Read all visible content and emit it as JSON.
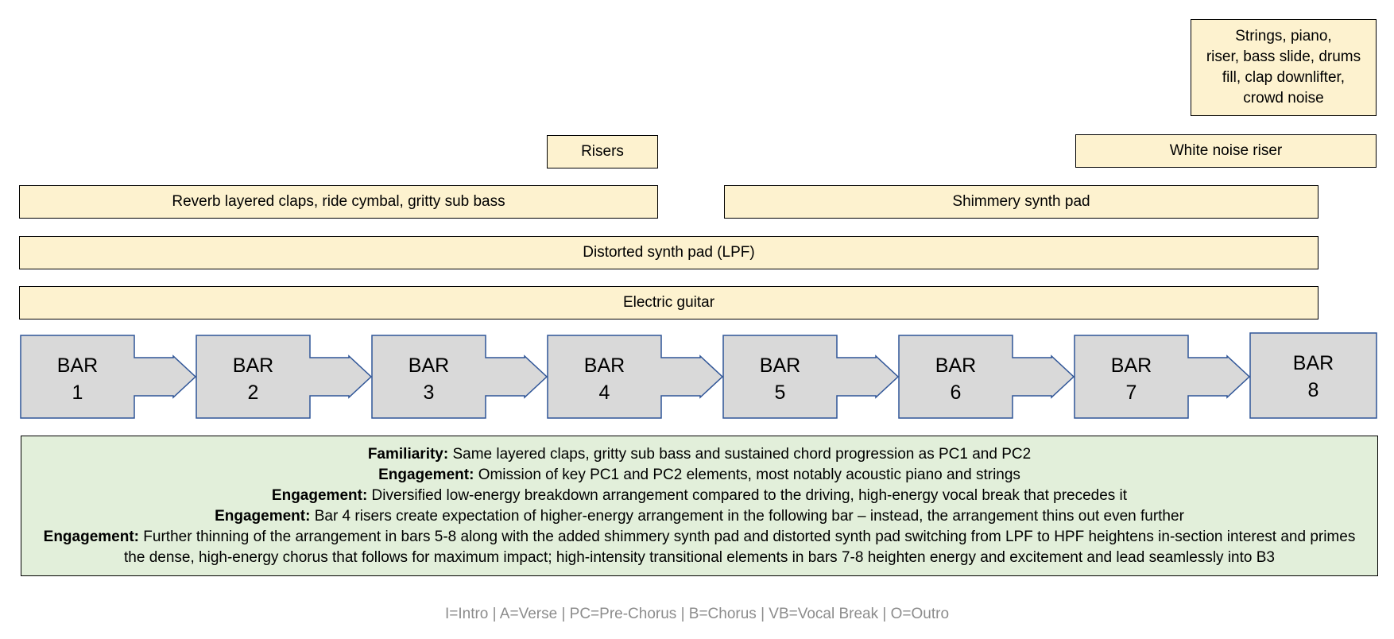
{
  "layers": {
    "transitions": "Strings, piano,\nriser, bass slide, drums\nfill, clap downlifter,\ncrowd noise",
    "risers": "Risers",
    "white_noise": "White noise riser",
    "claps": "Reverb layered claps, ride cymbal, gritty sub bass",
    "shimmer": "Shimmery synth pad",
    "distorted": "Distorted synth pad (LPF)",
    "guitar": "Electric guitar"
  },
  "bars": [
    {
      "word": "BAR",
      "num": "1"
    },
    {
      "word": "BAR",
      "num": "2"
    },
    {
      "word": "BAR",
      "num": "3"
    },
    {
      "word": "BAR",
      "num": "4"
    },
    {
      "word": "BAR",
      "num": "5"
    },
    {
      "word": "BAR",
      "num": "6"
    },
    {
      "word": "BAR",
      "num": "7"
    },
    {
      "word": "BAR",
      "num": "8"
    }
  ],
  "colors": {
    "bar_fill": "#d9d9d9",
    "bar_stroke": "#2f5597",
    "layer_fill": "#fdf2cf",
    "notes_fill": "#e2efda"
  },
  "notes": [
    {
      "label": "Familiarity:",
      "text": " Same layered claps, gritty sub bass and sustained chord progression as PC1 and PC2"
    },
    {
      "label": "Engagement:",
      "text": " Omission of key PC1 and PC2 elements, most notably acoustic piano and strings"
    },
    {
      "label": "Engagement:",
      "text": " Diversified low-energy breakdown arrangement compared to the driving, high-energy vocal break that precedes it"
    },
    {
      "label": "Engagement:",
      "text": " Bar 4 risers create expectation of higher-energy arrangement in the following bar – instead, the arrangement thins out even further"
    },
    {
      "label": "Engagement:",
      "text": " Further thinning of the arrangement in bars 5-8 along with the added shimmery synth pad and distorted synth pad switching from LPF to HPF heightens in-section interest and primes the dense, high-energy chorus that follows for maximum impact; high-intensity transitional elements in bars 7-8 heighten energy and excitement and lead seamlessly into B3"
    }
  ],
  "legend": "I=Intro | A=Verse | PC=Pre-Chorus | B=Chorus | VB=Vocal Break | O=Outro"
}
